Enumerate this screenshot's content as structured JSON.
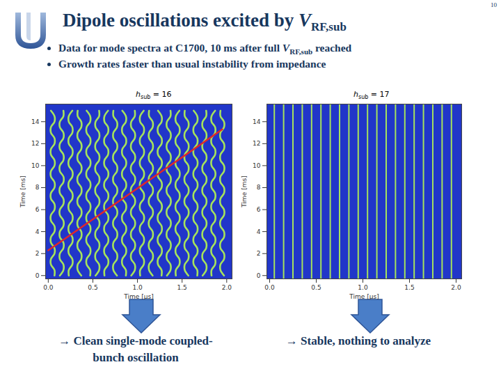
{
  "slide": {
    "title": {
      "prefix": "Dipole oscillations excited by ",
      "symbol": "V",
      "subscript": "RF,sub",
      "suffix": ""
    },
    "page_number": "10",
    "bullets": [
      {
        "prefix": "Data for mode spectra at C1700, 10 ms after full ",
        "symbol": "V",
        "subscript": "RF,sub",
        "suffix": " reached"
      },
      "Growth rates faster than usual instability from impedance"
    ],
    "captions": [
      [
        "→ Clean single-mode coupled-",
        "bunch oscillation"
      ],
      [
        "→ Stable, nothing to analyze"
      ]
    ]
  },
  "chart_data": [
    {
      "type": "line",
      "title": {
        "prefix": "",
        "symbol": "h",
        "subscript": "sub",
        "suffix": " = 16"
      },
      "x_label": "Time [μs]",
      "y_label": "Time [ms]",
      "xlim": [
        -0.03,
        2.06
      ],
      "ylim": [
        -0.3,
        15.6
      ],
      "xticks": [
        {
          "value": 0,
          "label": "0.0"
        },
        {
          "value": 0.5,
          "label": "0.5"
        },
        {
          "value": 1,
          "label": "1.0"
        },
        {
          "value": 1.5,
          "label": "1.5"
        },
        {
          "value": 2,
          "label": "2.0"
        }
      ],
      "yticks": [
        0,
        2,
        4,
        6,
        8,
        10,
        12,
        14
      ],
      "color": "#a6e35b",
      "time": [
        0,
        0.5,
        1,
        1.5,
        2,
        2.5,
        3,
        3.5,
        4,
        4.5,
        5,
        5.5,
        6,
        6.5,
        7,
        7.5,
        8,
        8.5,
        9,
        9.5,
        10,
        10.5,
        11,
        11.5,
        12,
        12.5,
        13,
        13.5,
        14,
        14.5,
        15
      ],
      "series": [
        {
          "x": [
            0.07,
            0.07,
            0.03,
            0.03,
            0.07,
            0.07,
            0.03,
            0.03,
            0.07,
            0.07,
            0.03,
            0.03,
            0.07,
            0.07,
            0.03,
            0.03,
            0.07,
            0.07,
            0.03,
            0.03,
            0.07,
            0.07,
            0.03,
            0.03,
            0.07,
            0.07,
            0.03,
            0.03,
            0.07,
            0.07,
            0.03
          ]
        },
        {
          "x": [
            0.13,
            0.17,
            0.17,
            0.13,
            0.13,
            0.17,
            0.17,
            0.13,
            0.13,
            0.17,
            0.17,
            0.13,
            0.13,
            0.17,
            0.17,
            0.13,
            0.13,
            0.17,
            0.17,
            0.13,
            0.13,
            0.17,
            0.17,
            0.13,
            0.13,
            0.17,
            0.17,
            0.13,
            0.13,
            0.17,
            0.17
          ]
        },
        {
          "x": [
            0.23,
            0.23,
            0.27,
            0.27,
            0.23,
            0.23,
            0.27,
            0.27,
            0.23,
            0.23,
            0.27,
            0.27,
            0.23,
            0.23,
            0.27,
            0.27,
            0.23,
            0.23,
            0.27,
            0.27,
            0.23,
            0.23,
            0.27,
            0.27,
            0.23,
            0.23,
            0.27,
            0.27,
            0.23,
            0.23,
            0.27
          ]
        },
        {
          "x": [
            0.37,
            0.33,
            0.33,
            0.37,
            0.37,
            0.33,
            0.33,
            0.37,
            0.37,
            0.33,
            0.33,
            0.37,
            0.37,
            0.33,
            0.33,
            0.37,
            0.37,
            0.33,
            0.33,
            0.37,
            0.37,
            0.33,
            0.33,
            0.37,
            0.37,
            0.33,
            0.33,
            0.37,
            0.37,
            0.33,
            0.33
          ]
        },
        {
          "x": [
            0.47,
            0.47,
            0.43,
            0.43,
            0.47,
            0.47,
            0.43,
            0.43,
            0.47,
            0.47,
            0.43,
            0.43,
            0.47,
            0.47,
            0.43,
            0.43,
            0.47,
            0.47,
            0.43,
            0.43,
            0.47,
            0.47,
            0.43,
            0.43,
            0.47,
            0.47,
            0.43,
            0.43,
            0.47,
            0.47,
            0.43
          ]
        },
        {
          "x": [
            0.53,
            0.57,
            0.57,
            0.53,
            0.53,
            0.57,
            0.57,
            0.53,
            0.53,
            0.57,
            0.57,
            0.53,
            0.53,
            0.57,
            0.57,
            0.53,
            0.53,
            0.57,
            0.57,
            0.53,
            0.53,
            0.57,
            0.57,
            0.53,
            0.53,
            0.57,
            0.57,
            0.53,
            0.53,
            0.57,
            0.57
          ]
        },
        {
          "x": [
            0.63,
            0.63,
            0.67,
            0.67,
            0.63,
            0.63,
            0.67,
            0.67,
            0.63,
            0.63,
            0.67,
            0.67,
            0.63,
            0.63,
            0.67,
            0.67,
            0.63,
            0.63,
            0.67,
            0.67,
            0.63,
            0.63,
            0.67,
            0.67,
            0.63,
            0.63,
            0.67,
            0.67,
            0.63,
            0.63,
            0.67
          ]
        },
        {
          "x": [
            0.77,
            0.73,
            0.73,
            0.77,
            0.77,
            0.73,
            0.73,
            0.77,
            0.77,
            0.73,
            0.73,
            0.77,
            0.77,
            0.73,
            0.73,
            0.77,
            0.77,
            0.73,
            0.73,
            0.77,
            0.77,
            0.73,
            0.73,
            0.77,
            0.77,
            0.73,
            0.73,
            0.77,
            0.77,
            0.73,
            0.73
          ]
        },
        {
          "x": [
            0.87,
            0.87,
            0.83,
            0.83,
            0.87,
            0.87,
            0.83,
            0.83,
            0.87,
            0.87,
            0.83,
            0.83,
            0.87,
            0.87,
            0.83,
            0.83,
            0.87,
            0.87,
            0.83,
            0.83,
            0.87,
            0.87,
            0.83,
            0.83,
            0.87,
            0.87,
            0.83,
            0.83,
            0.87,
            0.87,
            0.83
          ]
        },
        {
          "x": [
            0.93,
            0.97,
            0.97,
            0.93,
            0.93,
            0.97,
            0.97,
            0.93,
            0.93,
            0.97,
            0.97,
            0.93,
            0.93,
            0.97,
            0.97,
            0.93,
            0.93,
            0.97,
            0.97,
            0.93,
            0.93,
            0.97,
            0.97,
            0.93,
            0.93,
            0.97,
            0.97,
            0.93,
            0.93,
            0.97,
            0.97
          ]
        },
        {
          "x": [
            1.03,
            1.03,
            1.07,
            1.07,
            1.03,
            1.03,
            1.07,
            1.07,
            1.03,
            1.03,
            1.07,
            1.07,
            1.03,
            1.03,
            1.07,
            1.07,
            1.03,
            1.03,
            1.07,
            1.07,
            1.03,
            1.03,
            1.07,
            1.07,
            1.03,
            1.03,
            1.07,
            1.07,
            1.03,
            1.03,
            1.07
          ]
        },
        {
          "x": [
            1.17,
            1.13,
            1.13,
            1.17,
            1.17,
            1.13,
            1.13,
            1.17,
            1.17,
            1.13,
            1.13,
            1.17,
            1.17,
            1.13,
            1.13,
            1.17,
            1.17,
            1.13,
            1.13,
            1.17,
            1.17,
            1.13,
            1.13,
            1.17,
            1.17,
            1.13,
            1.13,
            1.17,
            1.17,
            1.13,
            1.13
          ]
        },
        {
          "x": [
            1.27,
            1.27,
            1.23,
            1.23,
            1.27,
            1.27,
            1.23,
            1.23,
            1.27,
            1.27,
            1.23,
            1.23,
            1.27,
            1.27,
            1.23,
            1.23,
            1.27,
            1.27,
            1.23,
            1.23,
            1.27,
            1.27,
            1.23,
            1.23,
            1.27,
            1.27,
            1.23,
            1.23,
            1.27,
            1.27,
            1.23
          ]
        },
        {
          "x": [
            1.33,
            1.37,
            1.37,
            1.33,
            1.33,
            1.37,
            1.37,
            1.33,
            1.33,
            1.37,
            1.37,
            1.33,
            1.33,
            1.37,
            1.37,
            1.33,
            1.33,
            1.37,
            1.37,
            1.33,
            1.33,
            1.37,
            1.37,
            1.33,
            1.33,
            1.37,
            1.37,
            1.33,
            1.33,
            1.37,
            1.37
          ]
        },
        {
          "x": [
            1.43,
            1.43,
            1.47,
            1.47,
            1.43,
            1.43,
            1.47,
            1.47,
            1.43,
            1.43,
            1.47,
            1.47,
            1.43,
            1.43,
            1.47,
            1.47,
            1.43,
            1.43,
            1.47,
            1.47,
            1.43,
            1.43,
            1.47,
            1.47,
            1.43,
            1.43,
            1.47,
            1.47,
            1.43,
            1.43,
            1.47
          ]
        },
        {
          "x": [
            1.57,
            1.53,
            1.53,
            1.57,
            1.57,
            1.53,
            1.53,
            1.57,
            1.57,
            1.53,
            1.53,
            1.57,
            1.57,
            1.53,
            1.53,
            1.57,
            1.57,
            1.53,
            1.53,
            1.57,
            1.57,
            1.53,
            1.53,
            1.57,
            1.57,
            1.53,
            1.53,
            1.57,
            1.57,
            1.53,
            1.53
          ]
        },
        {
          "x": [
            1.67,
            1.67,
            1.63,
            1.63,
            1.67,
            1.67,
            1.63,
            1.63,
            1.67,
            1.67,
            1.63,
            1.63,
            1.67,
            1.67,
            1.63,
            1.63,
            1.67,
            1.67,
            1.63,
            1.63,
            1.67,
            1.67,
            1.63,
            1.63,
            1.67,
            1.67,
            1.63,
            1.63,
            1.67,
            1.67,
            1.63
          ]
        },
        {
          "x": [
            1.73,
            1.77,
            1.77,
            1.73,
            1.73,
            1.77,
            1.77,
            1.73,
            1.73,
            1.77,
            1.77,
            1.73,
            1.73,
            1.77,
            1.77,
            1.73,
            1.73,
            1.77,
            1.77,
            1.73,
            1.73,
            1.77,
            1.77,
            1.73,
            1.73,
            1.77,
            1.77,
            1.73,
            1.73,
            1.77,
            1.77
          ]
        },
        {
          "x": [
            1.83,
            1.83,
            1.87,
            1.87,
            1.83,
            1.83,
            1.87,
            1.87,
            1.83,
            1.83,
            1.87,
            1.87,
            1.83,
            1.83,
            1.87,
            1.87,
            1.83,
            1.83,
            1.87,
            1.87,
            1.83,
            1.83,
            1.87,
            1.87,
            1.83,
            1.83,
            1.87,
            1.87,
            1.83,
            1.83,
            1.87
          ]
        },
        {
          "x": [
            1.97,
            1.93,
            1.93,
            1.97,
            1.97,
            1.93,
            1.93,
            1.97,
            1.97,
            1.93,
            1.93,
            1.97,
            1.97,
            1.93,
            1.93,
            1.97,
            1.97,
            1.93,
            1.93,
            1.97,
            1.97,
            1.93,
            1.93,
            1.97,
            1.97,
            1.93,
            1.93,
            1.97,
            1.97,
            1.93,
            1.93
          ]
        }
      ],
      "trend_line": {
        "x": [
          0,
          1.95
        ],
        "y": [
          2.3,
          13.3
        ],
        "color": "#e0262b"
      }
    },
    {
      "type": "rule",
      "title": {
        "prefix": "",
        "symbol": "h",
        "subscript": "sub",
        "suffix": " = 17"
      },
      "x_label": "Time [μs]",
      "y_label": "Time [ms]",
      "xlim": [
        -0.03,
        2.06
      ],
      "ylim": [
        -0.3,
        15.6
      ],
      "xticks": [
        {
          "value": 0,
          "label": "0.0"
        },
        {
          "value": 0.5,
          "label": "0.5"
        },
        {
          "value": 1,
          "label": "1.0"
        },
        {
          "value": 1.5,
          "label": "1.5"
        },
        {
          "value": 2,
          "label": "2.0"
        }
      ],
      "yticks": [
        0,
        2,
        4,
        6,
        8,
        10,
        12,
        14
      ],
      "color": "#a6e35b",
      "positions": [
        0.05,
        0.15,
        0.25,
        0.35,
        0.45,
        0.55,
        0.65,
        0.75,
        0.85,
        0.95,
        1.05,
        1.15,
        1.25,
        1.35,
        1.45,
        1.55,
        1.65,
        1.75,
        1.85,
        1.95
      ]
    }
  ]
}
